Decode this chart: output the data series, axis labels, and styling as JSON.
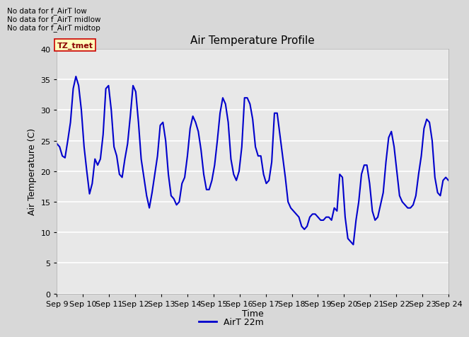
{
  "title": "Air Temperature Profile",
  "xlabel": "Time",
  "ylabel": "Air Temperature (C)",
  "ylim": [
    0,
    40
  ],
  "yticks": [
    0,
    5,
    10,
    15,
    20,
    25,
    30,
    35,
    40
  ],
  "line_color": "#0000cc",
  "line_width": 1.5,
  "legend_label": "AirT 22m",
  "legend_line_color": "#0000cc",
  "bg_color": "#d8d8d8",
  "plot_bg_color": "#e8e8e8",
  "no_data_texts": [
    "No data for f_AirT low",
    "No data for f_AirT midlow",
    "No data for f_AirT midtop"
  ],
  "tz_tmet_label": "TZ_tmet",
  "x_start_day": 9,
  "x_end_day": 24,
  "x_tick_days": [
    9,
    10,
    11,
    12,
    13,
    14,
    15,
    16,
    17,
    18,
    19,
    20,
    21,
    22,
    23,
    24
  ],
  "temperatures": [
    24.5,
    24.0,
    22.5,
    22.2,
    25.0,
    28.0,
    33.5,
    35.5,
    34.0,
    30.0,
    24.0,
    20.0,
    16.3,
    18.0,
    22.0,
    21.0,
    22.0,
    26.0,
    33.5,
    34.0,
    30.0,
    24.0,
    22.5,
    19.5,
    19.0,
    22.0,
    24.5,
    29.0,
    34.0,
    33.0,
    28.0,
    22.0,
    19.0,
    16.0,
    14.0,
    16.5,
    19.5,
    22.5,
    27.5,
    28.0,
    25.0,
    19.5,
    16.0,
    15.5,
    14.5,
    15.0,
    18.0,
    19.0,
    22.5,
    27.0,
    29.0,
    28.0,
    26.5,
    23.5,
    19.5,
    17.0,
    17.0,
    18.5,
    21.0,
    25.0,
    29.5,
    32.0,
    31.0,
    28.0,
    22.0,
    19.5,
    18.5,
    20.0,
    24.0,
    32.0,
    32.0,
    31.0,
    28.5,
    24.0,
    22.5,
    22.5,
    19.5,
    18.0,
    18.5,
    21.5,
    29.5,
    29.5,
    26.0,
    22.5,
    19.0,
    15.0,
    14.0,
    13.5,
    13.0,
    12.5,
    11.0,
    10.5,
    11.0,
    12.5,
    13.0,
    13.0,
    12.5,
    12.0,
    12.0,
    12.5,
    12.5,
    12.0,
    14.0,
    13.5,
    19.5,
    19.0,
    12.5,
    9.0,
    8.5,
    8.0,
    12.0,
    15.0,
    19.5,
    21.0,
    21.0,
    18.0,
    13.5,
    12.0,
    12.5,
    14.5,
    16.5,
    21.5,
    25.5,
    26.5,
    24.0,
    20.0,
    16.0,
    15.0,
    14.5,
    14.0,
    14.0,
    14.5,
    16.0,
    19.5,
    22.5,
    27.0,
    28.5,
    28.0,
    25.0,
    19.0,
    16.5,
    16.0,
    18.5,
    19.0,
    18.5
  ]
}
